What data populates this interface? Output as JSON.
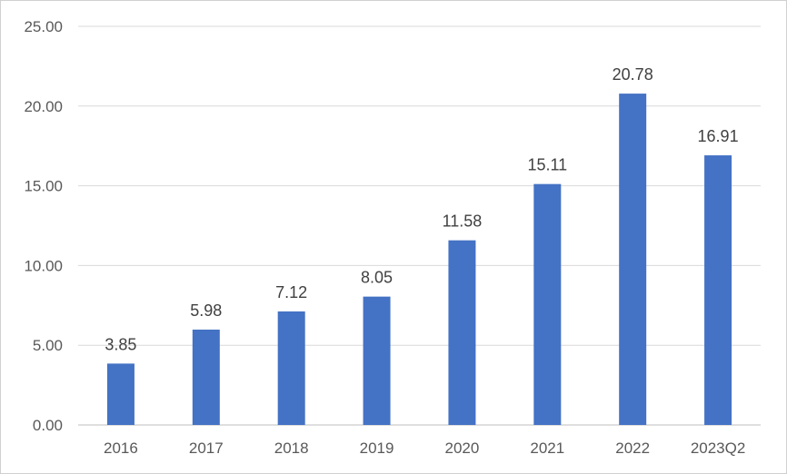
{
  "chart_data": {
    "type": "bar",
    "categories": [
      "2016",
      "2017",
      "2018",
      "2019",
      "2020",
      "2021",
      "2022",
      "2023Q2"
    ],
    "values": [
      3.85,
      5.98,
      7.12,
      8.05,
      11.58,
      15.11,
      20.78,
      16.91
    ],
    "data_labels": [
      "3.85",
      "5.98",
      "7.12",
      "8.05",
      "11.58",
      "15.11",
      "20.78",
      "16.91"
    ],
    "y_ticks": [
      "0.00",
      "5.00",
      "10.00",
      "15.00",
      "20.00",
      "25.00"
    ],
    "ylim": [
      0,
      25
    ],
    "grid": true,
    "legend": "none",
    "bar_color": "#4472C4",
    "title": "",
    "xlabel": "",
    "ylabel": ""
  }
}
